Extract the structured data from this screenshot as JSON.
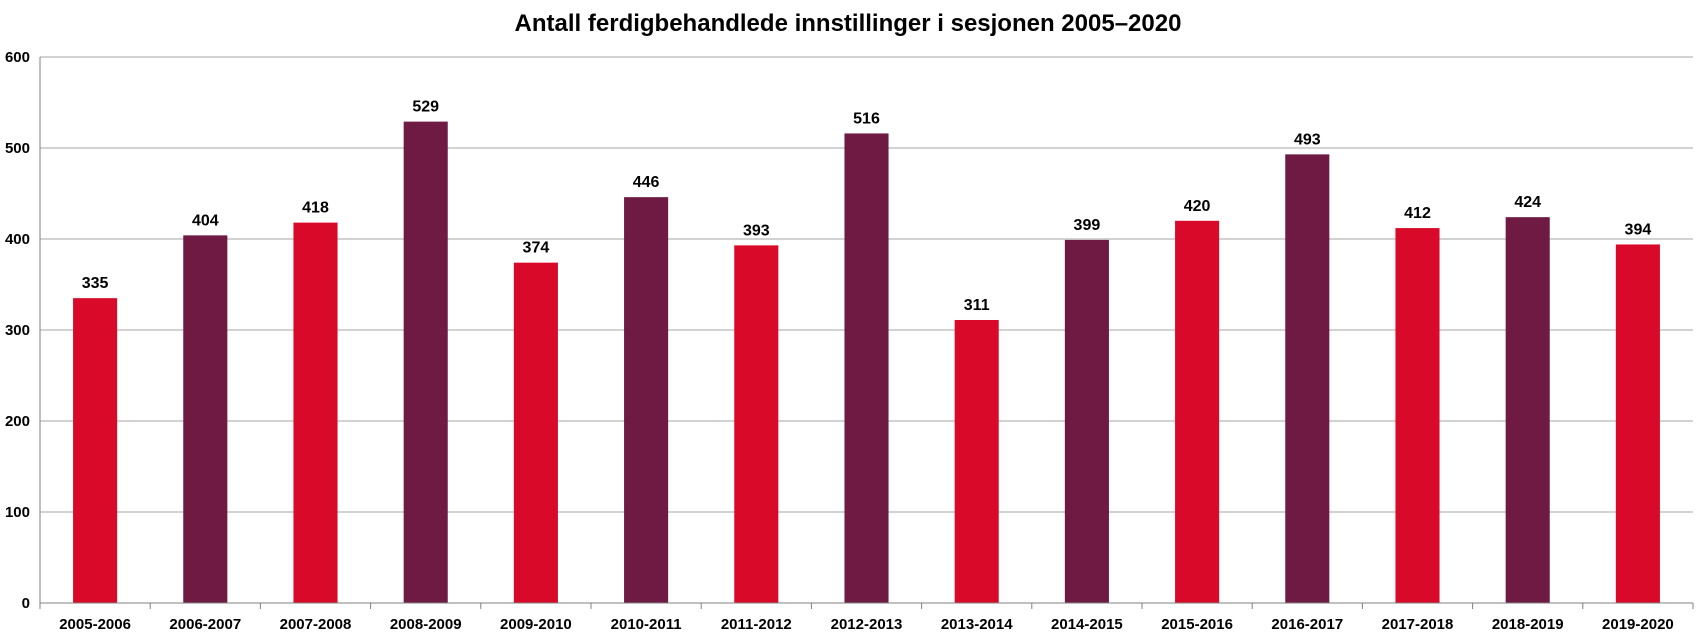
{
  "chart_data": {
    "type": "bar",
    "title": "Antall ferdigbehandlede innstillinger i sesjonen 2005–2020",
    "xlabel": "",
    "ylabel": "",
    "categories": [
      "2005-2006",
      "2006-2007",
      "2007-2008",
      "2008-2009",
      "2009-2010",
      "2010-2011",
      "2011-2012",
      "2012-2013",
      "2013-2014",
      "2014-2015",
      "2015-2016",
      "2016-2017",
      "2017-2018",
      "2018-2019",
      "2019-2020"
    ],
    "values": [
      335,
      404,
      418,
      529,
      374,
      446,
      393,
      516,
      311,
      399,
      420,
      493,
      412,
      424,
      394
    ],
    "bar_colors": [
      "#d90a29",
      "#6e1a43",
      "#d90a29",
      "#6e1a43",
      "#d90a29",
      "#6e1a43",
      "#d90a29",
      "#6e1a43",
      "#d90a29",
      "#6e1a43",
      "#d90a29",
      "#6e1a43",
      "#d90a29",
      "#6e1a43",
      "#d90a29"
    ],
    "ylim": [
      0,
      600
    ],
    "yticks": [
      0,
      100,
      200,
      300,
      400,
      500,
      600
    ],
    "grid": true,
    "data_labels": true,
    "legend": "none",
    "colors": {
      "gridline": "#a6a6a6",
      "axis": "#808080"
    }
  }
}
